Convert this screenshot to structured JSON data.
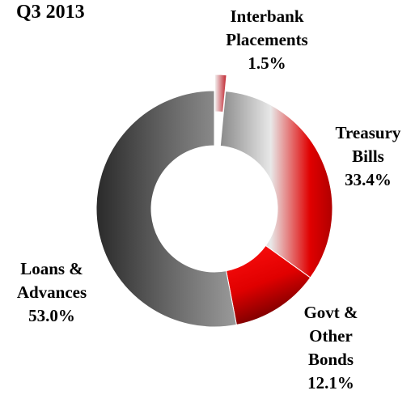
{
  "chart_data": {
    "type": "pie",
    "title": "Q3 2013",
    "slices": [
      {
        "name": "Interbank Placements",
        "name_lines": [
          "Interbank",
          "Placements"
        ],
        "value": 1.5,
        "label": "1.5%",
        "color": "#e0404a",
        "exploded": true
      },
      {
        "name": "Treasury Bills",
        "name_lines": [
          "Treasury",
          "Bills"
        ],
        "value": 33.4,
        "label": "33.4%",
        "color": "#e00000"
      },
      {
        "name": "Govt & Other Bonds",
        "name_lines": [
          "Govt &",
          "Other",
          "Bonds"
        ],
        "value": 12.1,
        "label": "12.1%",
        "color": "#ff0000"
      },
      {
        "name": "Loans & Advances",
        "name_lines": [
          "Loans &",
          "Advances"
        ],
        "value": 53.0,
        "label": "53.0%",
        "color": "#505050"
      }
    ],
    "donut": true,
    "legend": "none"
  }
}
